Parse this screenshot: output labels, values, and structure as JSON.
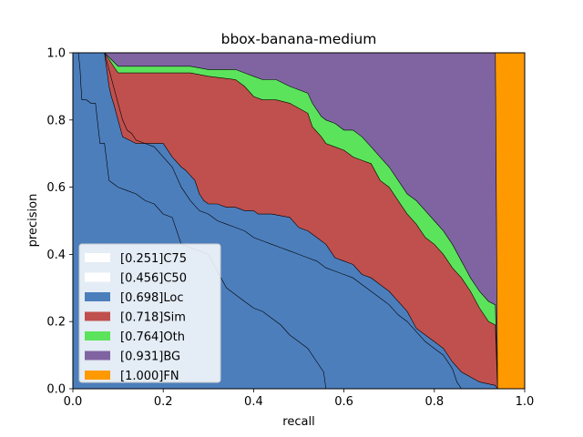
{
  "chart_data": {
    "type": "area",
    "title": "bbox-banana-medium",
    "xlabel": "recall",
    "ylabel": "precision",
    "xlim": [
      0,
      1
    ],
    "ylim": [
      0,
      1
    ],
    "xticks": [
      "0.0",
      "0.2",
      "0.4",
      "0.6",
      "0.8",
      "1.0"
    ],
    "yticks": [
      "0.0",
      "0.2",
      "0.4",
      "0.6",
      "0.8",
      "1.0"
    ],
    "legend_position": "lower-left",
    "series": [
      {
        "name": "[0.251]C75",
        "color": "#ffffff",
        "fill": false,
        "x": [
          0.0,
          0.012,
          0.016,
          0.018,
          0.02,
          0.03,
          0.04,
          0.05,
          0.06,
          0.07,
          0.08,
          0.09,
          0.1,
          0.12,
          0.14,
          0.16,
          0.18,
          0.2,
          0.22,
          0.24,
          0.26,
          0.28,
          0.3,
          0.32,
          0.34,
          0.36,
          0.38,
          0.4,
          0.42,
          0.44,
          0.46,
          0.48,
          0.5,
          0.52,
          0.54,
          0.555,
          0.56
        ],
        "y": [
          1.0,
          1.0,
          0.95,
          0.9,
          0.86,
          0.86,
          0.85,
          0.85,
          0.73,
          0.73,
          0.62,
          0.61,
          0.6,
          0.59,
          0.58,
          0.56,
          0.55,
          0.52,
          0.51,
          0.43,
          0.42,
          0.41,
          0.4,
          0.35,
          0.3,
          0.28,
          0.26,
          0.24,
          0.23,
          0.21,
          0.19,
          0.16,
          0.14,
          0.12,
          0.08,
          0.05,
          0.0
        ]
      },
      {
        "name": "[0.456]C50",
        "color": "#ffffff",
        "fill": false,
        "x": [
          0.0,
          0.07,
          0.08,
          0.09,
          0.1,
          0.11,
          0.12,
          0.13,
          0.14,
          0.16,
          0.18,
          0.2,
          0.22,
          0.24,
          0.26,
          0.28,
          0.3,
          0.32,
          0.34,
          0.36,
          0.38,
          0.4,
          0.42,
          0.44,
          0.46,
          0.48,
          0.5,
          0.52,
          0.54,
          0.56,
          0.58,
          0.6,
          0.62,
          0.64,
          0.66,
          0.68,
          0.7,
          0.72,
          0.74,
          0.76,
          0.78,
          0.8,
          0.82,
          0.84,
          0.85,
          0.86
        ],
        "y": [
          1.0,
          1.0,
          0.95,
          0.9,
          0.85,
          0.8,
          0.77,
          0.76,
          0.74,
          0.73,
          0.72,
          0.69,
          0.66,
          0.6,
          0.56,
          0.53,
          0.52,
          0.5,
          0.49,
          0.48,
          0.47,
          0.45,
          0.44,
          0.43,
          0.42,
          0.41,
          0.4,
          0.39,
          0.38,
          0.36,
          0.35,
          0.34,
          0.33,
          0.31,
          0.29,
          0.27,
          0.25,
          0.22,
          0.2,
          0.17,
          0.14,
          0.12,
          0.1,
          0.06,
          0.02,
          0.0
        ]
      },
      {
        "name": "[0.698]Loc",
        "color": "#4c7ebc",
        "fill": true,
        "x": [
          0.0,
          0.07,
          0.075,
          0.08,
          0.085,
          0.09,
          0.1,
          0.11,
          0.14,
          0.2,
          0.22,
          0.24,
          0.25,
          0.27,
          0.28,
          0.29,
          0.3,
          0.32,
          0.34,
          0.36,
          0.38,
          0.4,
          0.41,
          0.44,
          0.48,
          0.5,
          0.52,
          0.54,
          0.55,
          0.56,
          0.57,
          0.58,
          0.6,
          0.62,
          0.64,
          0.66,
          0.68,
          0.7,
          0.72,
          0.74,
          0.76,
          0.78,
          0.8,
          0.82,
          0.84,
          0.86,
          0.9,
          0.935,
          0.94
        ],
        "y": [
          1.0,
          1.0,
          0.95,
          0.9,
          0.87,
          0.85,
          0.8,
          0.75,
          0.73,
          0.73,
          0.69,
          0.66,
          0.65,
          0.62,
          0.58,
          0.56,
          0.55,
          0.55,
          0.54,
          0.54,
          0.53,
          0.53,
          0.52,
          0.52,
          0.51,
          0.48,
          0.47,
          0.45,
          0.44,
          0.43,
          0.41,
          0.39,
          0.38,
          0.37,
          0.34,
          0.33,
          0.31,
          0.29,
          0.26,
          0.23,
          0.18,
          0.16,
          0.14,
          0.12,
          0.08,
          0.05,
          0.02,
          0.01,
          0.0
        ]
      },
      {
        "name": "[0.718]Sim",
        "color": "#c0504d",
        "fill": true,
        "x": [
          0.0,
          0.07,
          0.1,
          0.12,
          0.2,
          0.26,
          0.3,
          0.36,
          0.38,
          0.4,
          0.42,
          0.45,
          0.48,
          0.52,
          0.53,
          0.55,
          0.56,
          0.58,
          0.6,
          0.62,
          0.64,
          0.66,
          0.68,
          0.7,
          0.72,
          0.74,
          0.76,
          0.78,
          0.8,
          0.82,
          0.84,
          0.86,
          0.88,
          0.9,
          0.92,
          0.935,
          0.94
        ],
        "y": [
          1.0,
          1.0,
          0.94,
          0.94,
          0.94,
          0.94,
          0.93,
          0.92,
          0.9,
          0.87,
          0.86,
          0.86,
          0.85,
          0.82,
          0.78,
          0.75,
          0.73,
          0.72,
          0.71,
          0.69,
          0.68,
          0.67,
          0.62,
          0.6,
          0.56,
          0.52,
          0.49,
          0.45,
          0.43,
          0.4,
          0.36,
          0.33,
          0.29,
          0.24,
          0.2,
          0.19,
          0.0
        ]
      },
      {
        "name": "[0.764]Oth",
        "color": "#5ce35c",
        "fill": true,
        "x": [
          0.0,
          0.07,
          0.1,
          0.12,
          0.2,
          0.26,
          0.3,
          0.36,
          0.38,
          0.4,
          0.42,
          0.45,
          0.48,
          0.52,
          0.53,
          0.55,
          0.56,
          0.58,
          0.6,
          0.62,
          0.64,
          0.66,
          0.68,
          0.7,
          0.72,
          0.74,
          0.76,
          0.78,
          0.8,
          0.82,
          0.84,
          0.86,
          0.88,
          0.9,
          0.92,
          0.935,
          0.94
        ],
        "y": [
          1.0,
          1.0,
          0.96,
          0.96,
          0.96,
          0.96,
          0.95,
          0.95,
          0.94,
          0.93,
          0.92,
          0.92,
          0.9,
          0.88,
          0.85,
          0.81,
          0.8,
          0.79,
          0.77,
          0.77,
          0.75,
          0.72,
          0.69,
          0.66,
          0.62,
          0.58,
          0.56,
          0.53,
          0.5,
          0.47,
          0.43,
          0.38,
          0.33,
          0.29,
          0.26,
          0.25,
          0.0
        ]
      },
      {
        "name": "[0.931]BG",
        "color": "#8064a2",
        "fill": true,
        "x": [
          0.0,
          0.1,
          0.935,
          0.94
        ],
        "y": [
          1.0,
          1.0,
          1.0,
          0.0
        ]
      },
      {
        "name": "[1.000]FN",
        "color": "#ff9900",
        "fill": true,
        "x": [
          0.0,
          0.93,
          1.0
        ],
        "y": [
          1.0,
          1.0,
          1.0
        ]
      }
    ]
  }
}
